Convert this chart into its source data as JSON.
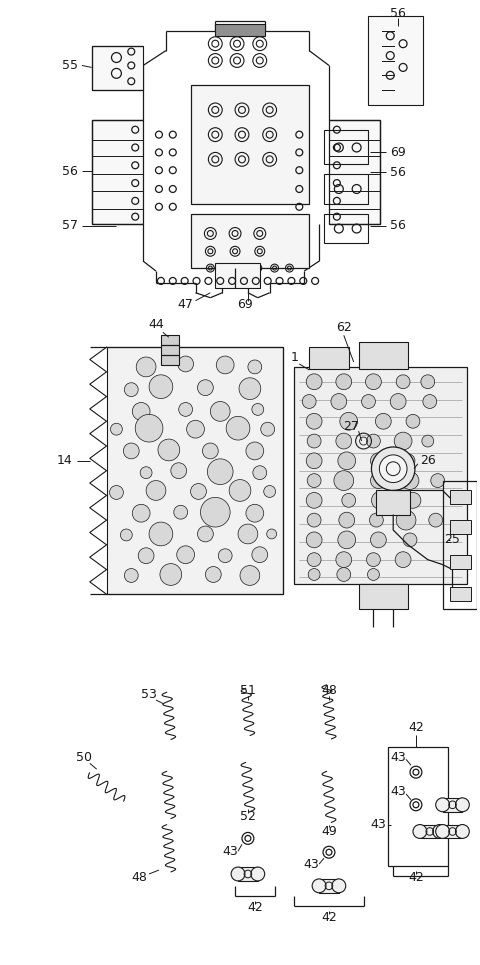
{
  "bg_color": "#ffffff",
  "line_color": "#1a1a1a",
  "fig_width": 4.8,
  "fig_height": 9.65,
  "dpi": 100
}
